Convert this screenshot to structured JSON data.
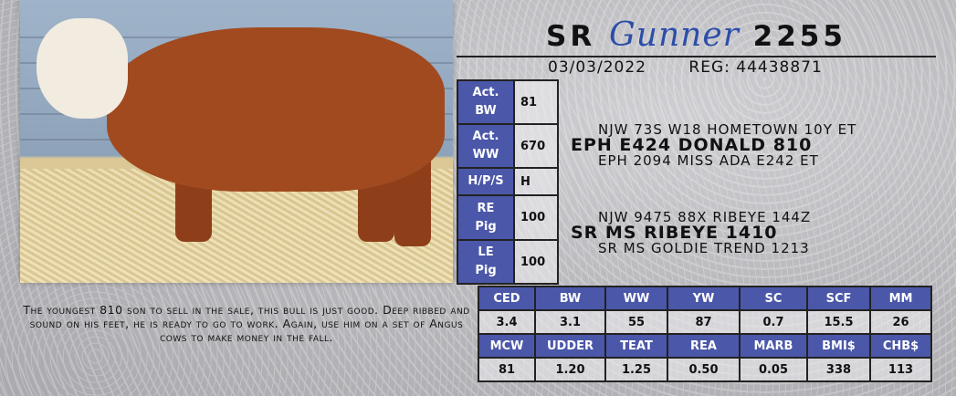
{
  "header": {
    "prefix": "SR",
    "name": "Gunner",
    "number": "2255",
    "date": "03/03/2022",
    "reg": "REG: 44438871"
  },
  "stats": [
    {
      "label1": "Act.",
      "label2": "BW",
      "value": "81"
    },
    {
      "label1": "Act.",
      "label2": "WW",
      "value": "670"
    },
    {
      "label1": "H/P/S",
      "label2": "",
      "value": "H"
    },
    {
      "label1": "RE",
      "label2": "Pig",
      "value": "100"
    },
    {
      "label1": "LE",
      "label2": "Pig",
      "value": "100"
    }
  ],
  "pedigree": {
    "sire_sire": "NJW 73S W18 HOMETOWN 10Y ET",
    "sire": "EPH E424 DONALD 810",
    "sire_dam": "EPH 2094 MISS ADA E242 ET",
    "dam_sire": "NJW 9475 88X RIBEYE 144Z",
    "dam": "SR MS RIBEYE 1410",
    "dam_dam": "SR MS GOLDIE TREND 1213"
  },
  "description": "The youngest 810 son to sell in the sale, this bull is just good.  Deep ribbed and sound on his feet, he is ready to go to work.  Again, use him on a set of Angus cows to make money in the fall.",
  "epds": {
    "row1_headers": [
      "CED",
      "BW",
      "WW",
      "YW",
      "SC",
      "SCF",
      "MM"
    ],
    "row1_values": [
      "3.4",
      "3.1",
      "55",
      "87",
      "0.7",
      "15.5",
      "26"
    ],
    "row2_headers": [
      "MCW",
      "UDDER",
      "TEAT",
      "REA",
      "MARB",
      "BMI$",
      "CHB$"
    ],
    "row2_values": [
      "81",
      "1.20",
      "1.25",
      "0.50",
      "0.05",
      "338",
      "113"
    ]
  },
  "colors": {
    "header_blue": "#4b57a8",
    "name_blue": "#2c4ea8"
  }
}
